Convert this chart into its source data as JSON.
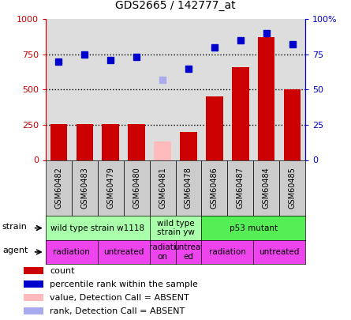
{
  "title": "GDS2665 / 142777_at",
  "samples": [
    "GSM60482",
    "GSM60483",
    "GSM60479",
    "GSM60480",
    "GSM60481",
    "GSM60478",
    "GSM60486",
    "GSM60487",
    "GSM60484",
    "GSM60485"
  ],
  "bar_values": [
    255,
    255,
    255,
    255,
    130,
    200,
    450,
    660,
    870,
    500
  ],
  "bar_colors": [
    "#cc0000",
    "#cc0000",
    "#cc0000",
    "#cc0000",
    "#ffbbbb",
    "#cc0000",
    "#cc0000",
    "#cc0000",
    "#cc0000",
    "#cc0000"
  ],
  "rank_values": [
    70,
    75,
    71,
    73,
    57,
    65,
    80,
    85,
    90,
    82
  ],
  "rank_absent_index": 4,
  "ylim_left": [
    0,
    1000
  ],
  "ylim_right": [
    0,
    100
  ],
  "yticks_left": [
    0,
    250,
    500,
    750,
    1000
  ],
  "yticks_right": [
    0,
    25,
    50,
    75,
    100
  ],
  "ytick_labels_left": [
    "0",
    "250",
    "500",
    "750",
    "1000"
  ],
  "ytick_labels_right": [
    "0",
    "25",
    "50",
    "75",
    "100%"
  ],
  "hlines": [
    250,
    500,
    750
  ],
  "strain_groups": [
    {
      "label": "wild type strain w1118",
      "start": 0,
      "end": 4,
      "color": "#aaffaa"
    },
    {
      "label": "wild type\nstrain yw",
      "start": 4,
      "end": 6,
      "color": "#aaffaa"
    },
    {
      "label": "p53 mutant",
      "start": 6,
      "end": 10,
      "color": "#55ee55"
    }
  ],
  "agent_groups": [
    {
      "label": "radiation",
      "start": 0,
      "end": 2,
      "color": "#ee44ee"
    },
    {
      "label": "untreated",
      "start": 2,
      "end": 4,
      "color": "#ee44ee"
    },
    {
      "label": "radiati\non",
      "start": 4,
      "end": 5,
      "color": "#ee44ee"
    },
    {
      "label": "untreat\ned",
      "start": 5,
      "end": 6,
      "color": "#ee44ee"
    },
    {
      "label": "radiation",
      "start": 6,
      "end": 8,
      "color": "#ee44ee"
    },
    {
      "label": "untreated",
      "start": 8,
      "end": 10,
      "color": "#ee44ee"
    }
  ],
  "legend_items": [
    {
      "label": "count",
      "color": "#cc0000"
    },
    {
      "label": "percentile rank within the sample",
      "color": "#0000cc"
    },
    {
      "label": "value, Detection Call = ABSENT",
      "color": "#ffbbbb"
    },
    {
      "label": "rank, Detection Call = ABSENT",
      "color": "#aaaaee"
    }
  ],
  "bar_width": 0.65,
  "axis_bg": "#dddddd",
  "left_color": "#cc0000",
  "right_color": "#0000cc"
}
